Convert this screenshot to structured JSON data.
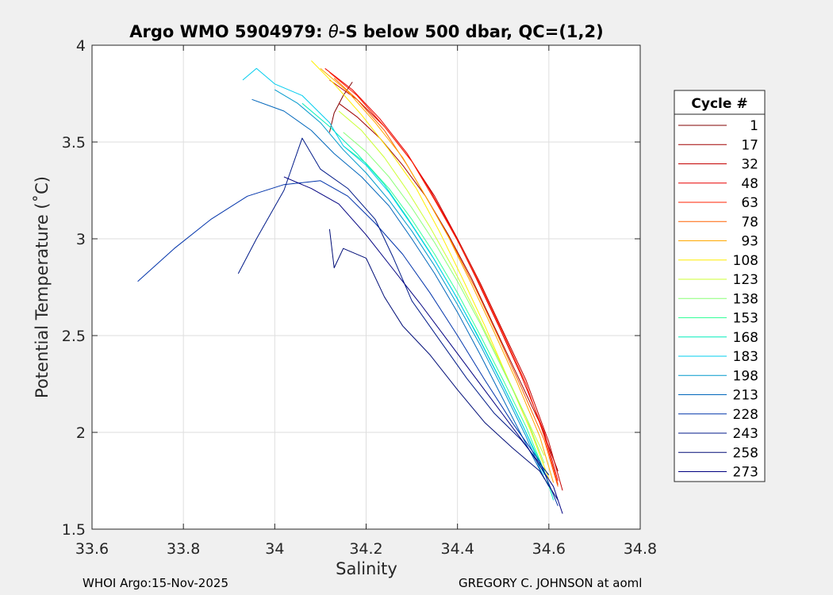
{
  "chart_data": {
    "type": "line",
    "title_prefix": "Argo WMO 5904979: ",
    "title_theta": "θ",
    "title_suffix": "-S below 500 dbar,  QC=(1,2)",
    "xlabel": "Salinity",
    "ylabel": "Potential Temperature (˚C)",
    "xlim": [
      33.6,
      34.8
    ],
    "ylim": [
      1.5,
      4.0
    ],
    "xticks": [
      33.6,
      33.8,
      34.0,
      34.2,
      34.4,
      34.6,
      34.8
    ],
    "xtick_labels": [
      "33.6",
      "33.8",
      "34",
      "34.2",
      "34.4",
      "34.6",
      "34.8"
    ],
    "yticks": [
      1.5,
      2.0,
      2.5,
      3.0,
      3.5,
      4.0
    ],
    "ytick_labels": [
      "1.5",
      "2",
      "2.5",
      "3",
      "3.5",
      "4"
    ],
    "grid": true,
    "legend_title": "Cycle #",
    "legend_position": "right",
    "legend_entries": [
      {
        "label": "1",
        "color": "#800000"
      },
      {
        "label": "17",
        "color": "#a00000"
      },
      {
        "label": "32",
        "color": "#c40000"
      },
      {
        "label": "48",
        "color": "#e80000"
      },
      {
        "label": "63",
        "color": "#ff2000"
      },
      {
        "label": "78",
        "color": "#ff6000"
      },
      {
        "label": "93",
        "color": "#ffa800"
      },
      {
        "label": "108",
        "color": "#ffee00"
      },
      {
        "label": "123",
        "color": "#ccff33"
      },
      {
        "label": "138",
        "color": "#88ff77"
      },
      {
        "label": "153",
        "color": "#33ff99"
      },
      {
        "label": "168",
        "color": "#00eebb"
      },
      {
        "label": "183",
        "color": "#00ccee"
      },
      {
        "label": "198",
        "color": "#0099cc"
      },
      {
        "label": "213",
        "color": "#0066bb"
      },
      {
        "label": "228",
        "color": "#0033aa"
      },
      {
        "label": "243",
        "color": "#001a88"
      },
      {
        "label": "258",
        "color": "#000d77"
      },
      {
        "label": "273",
        "color": "#000080"
      }
    ],
    "series": [
      {
        "name": "1",
        "color": "#800000",
        "points": [
          [
            34.17,
            3.81
          ],
          [
            34.15,
            3.74
          ],
          [
            34.13,
            3.65
          ],
          [
            34.12,
            3.55
          ]
        ]
      },
      {
        "name": "17",
        "color": "#a00000",
        "points": [
          [
            34.14,
            3.7
          ],
          [
            34.18,
            3.63
          ],
          [
            34.23,
            3.52
          ],
          [
            34.28,
            3.38
          ],
          [
            34.33,
            3.22
          ],
          [
            34.38,
            3.02
          ],
          [
            34.43,
            2.8
          ],
          [
            34.48,
            2.55
          ],
          [
            34.53,
            2.3
          ],
          [
            34.58,
            2.05
          ],
          [
            34.62,
            1.8
          ]
        ]
      },
      {
        "name": "32",
        "color": "#c40000",
        "points": [
          [
            34.12,
            3.82
          ],
          [
            34.18,
            3.72
          ],
          [
            34.24,
            3.58
          ],
          [
            34.3,
            3.4
          ],
          [
            34.35,
            3.22
          ],
          [
            34.4,
            3.0
          ],
          [
            34.45,
            2.77
          ],
          [
            34.5,
            2.52
          ],
          [
            34.55,
            2.27
          ],
          [
            34.6,
            1.95
          ],
          [
            34.63,
            1.7
          ]
        ]
      },
      {
        "name": "48",
        "color": "#e80000",
        "points": [
          [
            34.11,
            3.88
          ],
          [
            34.17,
            3.77
          ],
          [
            34.23,
            3.62
          ],
          [
            34.29,
            3.44
          ],
          [
            34.34,
            3.25
          ],
          [
            34.39,
            3.04
          ],
          [
            34.44,
            2.8
          ],
          [
            34.49,
            2.55
          ],
          [
            34.54,
            2.29
          ],
          [
            34.59,
            2.0
          ],
          [
            34.62,
            1.75
          ]
        ]
      },
      {
        "name": "63",
        "color": "#ff2000",
        "points": [
          [
            34.12,
            3.86
          ],
          [
            34.18,
            3.74
          ],
          [
            34.24,
            3.58
          ],
          [
            34.3,
            3.4
          ],
          [
            34.35,
            3.2
          ],
          [
            34.4,
            2.99
          ],
          [
            34.45,
            2.76
          ],
          [
            34.5,
            2.51
          ],
          [
            34.55,
            2.25
          ],
          [
            34.59,
            1.98
          ],
          [
            34.62,
            1.73
          ]
        ]
      },
      {
        "name": "78",
        "color": "#ff6000",
        "points": [
          [
            34.13,
            3.83
          ],
          [
            34.18,
            3.72
          ],
          [
            34.24,
            3.56
          ],
          [
            34.29,
            3.38
          ],
          [
            34.34,
            3.18
          ],
          [
            34.39,
            2.97
          ],
          [
            34.44,
            2.74
          ],
          [
            34.49,
            2.49
          ],
          [
            34.54,
            2.23
          ],
          [
            34.59,
            1.96
          ],
          [
            34.62,
            1.72
          ]
        ]
      },
      {
        "name": "93",
        "color": "#ffa800",
        "points": [
          [
            34.1,
            3.88
          ],
          [
            34.16,
            3.76
          ],
          [
            34.22,
            3.6
          ],
          [
            34.28,
            3.42
          ],
          [
            34.33,
            3.22
          ],
          [
            34.38,
            3.01
          ],
          [
            34.43,
            2.77
          ],
          [
            34.48,
            2.52
          ],
          [
            34.53,
            2.26
          ],
          [
            34.58,
            1.98
          ],
          [
            34.61,
            1.74
          ]
        ]
      },
      {
        "name": "108",
        "color": "#ffee00",
        "points": [
          [
            34.08,
            3.92
          ],
          [
            34.13,
            3.8
          ],
          [
            34.19,
            3.64
          ],
          [
            34.25,
            3.46
          ],
          [
            34.31,
            3.26
          ],
          [
            34.36,
            3.04
          ],
          [
            34.41,
            2.8
          ],
          [
            34.46,
            2.55
          ],
          [
            34.51,
            2.28
          ],
          [
            34.56,
            2.01
          ],
          [
            34.6,
            1.76
          ]
        ]
      },
      {
        "name": "123",
        "color": "#ccff33",
        "points": [
          [
            34.14,
            3.66
          ],
          [
            34.19,
            3.56
          ],
          [
            34.24,
            3.42
          ],
          [
            34.29,
            3.25
          ],
          [
            34.34,
            3.06
          ],
          [
            34.39,
            2.85
          ],
          [
            34.44,
            2.62
          ],
          [
            34.49,
            2.38
          ],
          [
            34.54,
            2.13
          ],
          [
            34.59,
            1.88
          ]
        ]
      },
      {
        "name": "138",
        "color": "#88ff77",
        "points": [
          [
            34.15,
            3.55
          ],
          [
            34.2,
            3.45
          ],
          [
            34.25,
            3.32
          ],
          [
            34.3,
            3.16
          ],
          [
            34.35,
            2.98
          ],
          [
            34.4,
            2.78
          ],
          [
            34.45,
            2.56
          ],
          [
            34.5,
            2.32
          ],
          [
            34.55,
            2.08
          ],
          [
            34.59,
            1.84
          ]
        ]
      },
      {
        "name": "153",
        "color": "#33ff99",
        "points": [
          [
            34.15,
            3.48
          ],
          [
            34.2,
            3.39
          ],
          [
            34.25,
            3.26
          ],
          [
            34.3,
            3.1
          ],
          [
            34.35,
            2.92
          ],
          [
            34.4,
            2.72
          ],
          [
            34.45,
            2.5
          ],
          [
            34.5,
            2.27
          ],
          [
            34.55,
            2.03
          ],
          [
            34.59,
            1.8
          ]
        ]
      },
      {
        "name": "168",
        "color": "#00eebb",
        "points": [
          [
            34.06,
            3.7
          ],
          [
            34.12,
            3.58
          ],
          [
            34.18,
            3.44
          ],
          [
            34.24,
            3.28
          ],
          [
            34.29,
            3.11
          ],
          [
            34.34,
            2.93
          ],
          [
            34.39,
            2.73
          ],
          [
            34.44,
            2.52
          ],
          [
            34.49,
            2.29
          ],
          [
            34.54,
            2.05
          ],
          [
            34.59,
            1.8
          ],
          [
            34.61,
            1.65
          ]
        ]
      },
      {
        "name": "183",
        "color": "#00ccee",
        "points": [
          [
            33.93,
            3.82
          ],
          [
            33.96,
            3.88
          ],
          [
            34.0,
            3.8
          ],
          [
            34.06,
            3.74
          ],
          [
            34.12,
            3.6
          ],
          [
            34.15,
            3.48
          ],
          [
            34.2,
            3.38
          ],
          [
            34.25,
            3.24
          ],
          [
            34.3,
            3.07
          ],
          [
            34.35,
            2.89
          ],
          [
            34.4,
            2.69
          ],
          [
            34.45,
            2.47
          ],
          [
            34.5,
            2.24
          ],
          [
            34.55,
            2.0
          ],
          [
            34.59,
            1.78
          ]
        ]
      },
      {
        "name": "198",
        "color": "#0099cc",
        "points": [
          [
            34.0,
            3.77
          ],
          [
            34.05,
            3.7
          ],
          [
            34.1,
            3.6
          ],
          [
            34.15,
            3.46
          ],
          [
            34.2,
            3.34
          ],
          [
            34.25,
            3.2
          ],
          [
            34.3,
            3.04
          ],
          [
            34.35,
            2.86
          ],
          [
            34.4,
            2.66
          ],
          [
            34.45,
            2.45
          ],
          [
            34.5,
            2.22
          ],
          [
            34.55,
            1.98
          ],
          [
            34.59,
            1.76
          ]
        ]
      },
      {
        "name": "213",
        "color": "#0066bb",
        "points": [
          [
            33.95,
            3.72
          ],
          [
            34.02,
            3.66
          ],
          [
            34.08,
            3.56
          ],
          [
            34.13,
            3.44
          ],
          [
            34.19,
            3.32
          ],
          [
            34.25,
            3.17
          ],
          [
            34.3,
            3.0
          ],
          [
            34.35,
            2.82
          ],
          [
            34.4,
            2.62
          ],
          [
            34.45,
            2.4
          ],
          [
            34.5,
            2.17
          ],
          [
            34.55,
            1.94
          ],
          [
            34.6,
            1.72
          ]
        ]
      },
      {
        "name": "228",
        "color": "#0033aa",
        "points": [
          [
            33.7,
            2.78
          ],
          [
            33.78,
            2.95
          ],
          [
            33.86,
            3.1
          ],
          [
            33.94,
            3.22
          ],
          [
            34.02,
            3.28
          ],
          [
            34.1,
            3.3
          ],
          [
            34.16,
            3.22
          ],
          [
            34.22,
            3.08
          ],
          [
            34.28,
            2.92
          ],
          [
            34.34,
            2.72
          ],
          [
            34.4,
            2.5
          ],
          [
            34.46,
            2.27
          ],
          [
            34.52,
            2.05
          ],
          [
            34.58,
            1.85
          ],
          [
            34.62,
            1.62
          ]
        ]
      },
      {
        "name": "243",
        "color": "#001a88",
        "points": [
          [
            33.92,
            2.82
          ],
          [
            33.96,
            3.0
          ],
          [
            34.02,
            3.25
          ],
          [
            34.06,
            3.52
          ],
          [
            34.1,
            3.36
          ],
          [
            34.16,
            3.26
          ],
          [
            34.22,
            3.1
          ],
          [
            34.26,
            2.9
          ],
          [
            34.3,
            2.68
          ],
          [
            34.36,
            2.48
          ],
          [
            34.42,
            2.28
          ],
          [
            34.48,
            2.1
          ],
          [
            34.54,
            1.96
          ],
          [
            34.6,
            1.78
          ]
        ]
      },
      {
        "name": "258",
        "color": "#000d77",
        "points": [
          [
            34.12,
            3.05
          ],
          [
            34.13,
            2.85
          ],
          [
            34.15,
            2.95
          ],
          [
            34.2,
            2.9
          ],
          [
            34.24,
            2.7
          ],
          [
            34.28,
            2.55
          ],
          [
            34.34,
            2.4
          ],
          [
            34.4,
            2.22
          ],
          [
            34.46,
            2.05
          ],
          [
            34.52,
            1.92
          ],
          [
            34.58,
            1.8
          ],
          [
            34.62,
            1.65
          ]
        ]
      },
      {
        "name": "273",
        "color": "#000080",
        "points": [
          [
            34.02,
            3.32
          ],
          [
            34.08,
            3.26
          ],
          [
            34.14,
            3.18
          ],
          [
            34.2,
            3.02
          ],
          [
            34.26,
            2.84
          ],
          [
            34.32,
            2.66
          ],
          [
            34.38,
            2.47
          ],
          [
            34.44,
            2.28
          ],
          [
            34.5,
            2.09
          ],
          [
            34.56,
            1.9
          ],
          [
            34.61,
            1.72
          ],
          [
            34.63,
            1.58
          ]
        ]
      }
    ]
  },
  "footer": {
    "left": "WHOI Argo:15-Nov-2025",
    "right": "GREGORY C. JOHNSON at aoml"
  }
}
